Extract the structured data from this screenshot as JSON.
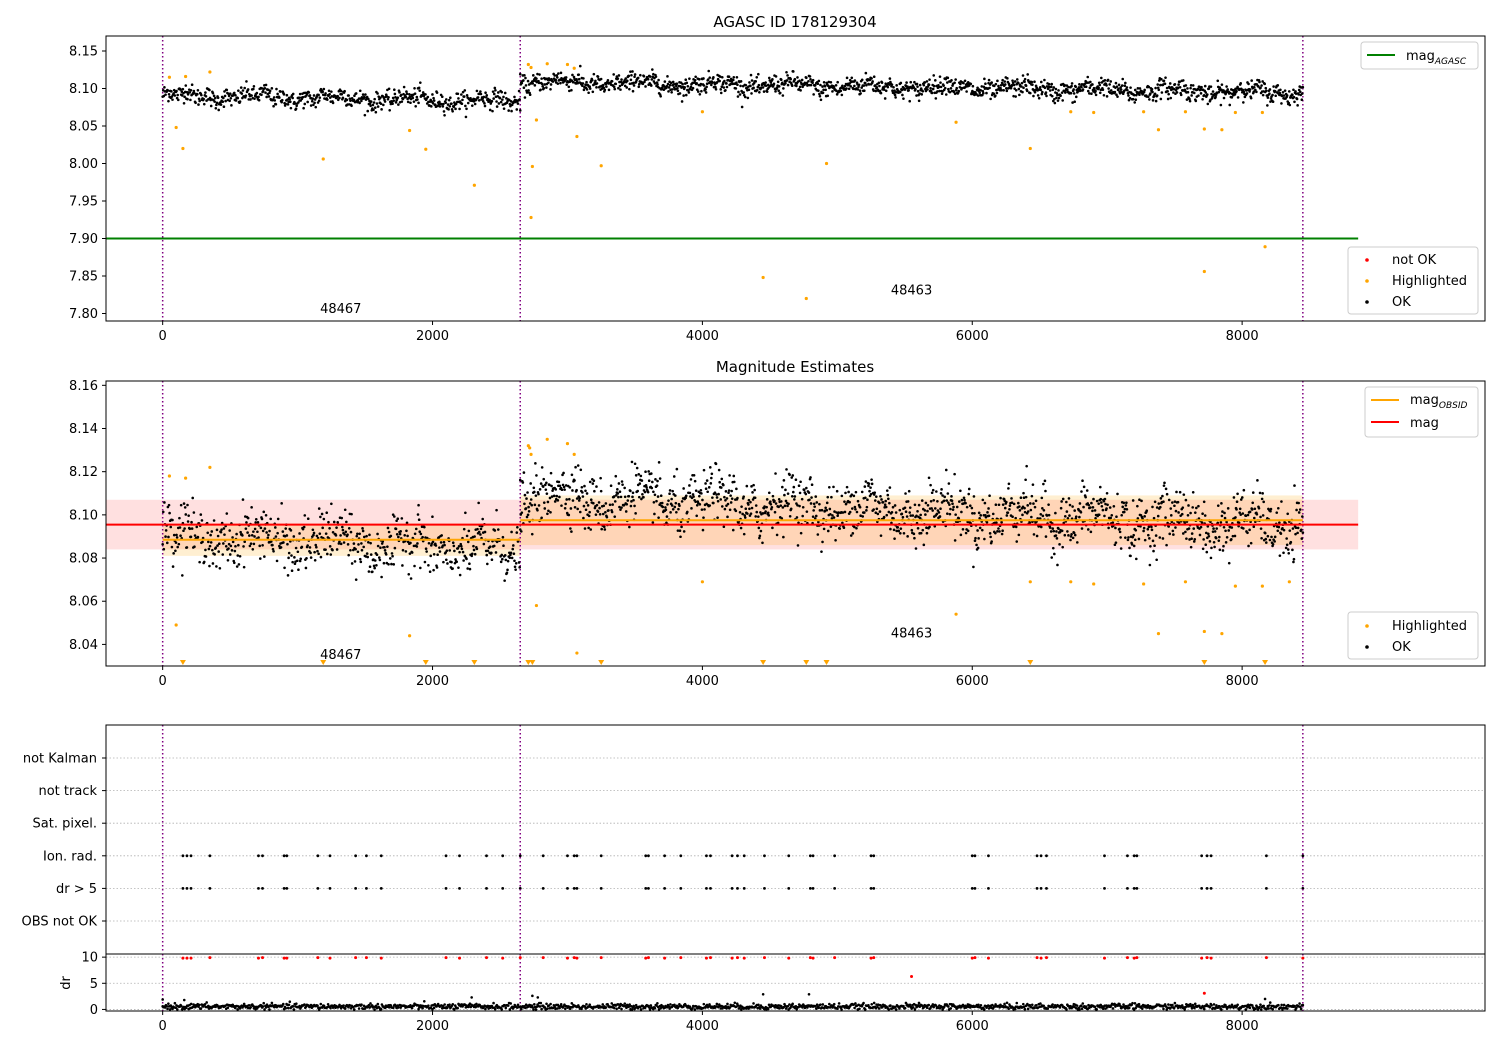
{
  "figure": {
    "background": "#ffffff"
  },
  "colors": {
    "ok": "#000000",
    "highlighted": "#ffa500",
    "not_ok": "#ff0000",
    "mag_agasc": "#008000",
    "mag": "#ff0000",
    "mag_obsid": "#ffa500",
    "obsid_boundary": "#800080",
    "grid": "#b0b0b0"
  },
  "chart_data": [
    {
      "id": "panel1",
      "type": "scatter",
      "title": "AGASC ID 178129304",
      "xlabel": "",
      "ylabel": "",
      "xlim": [
        -420,
        9800
      ],
      "ylim": [
        7.79,
        8.17
      ],
      "xticks": [
        0,
        2000,
        4000,
        6000,
        8000
      ],
      "xtick_labels": [
        "0",
        "2000",
        "4000",
        "6000",
        "8000"
      ],
      "yticks": [
        7.8,
        7.85,
        7.9,
        7.95,
        8.0,
        8.05,
        8.1,
        8.15
      ],
      "ytick_labels": [
        "7.80",
        "7.85",
        "7.90",
        "7.95",
        "8.00",
        "8.05",
        "8.10",
        "8.15"
      ],
      "obsid_boundaries": [
        0,
        2650,
        8450
      ],
      "obsid_labels": [
        {
          "text": "48467",
          "x": 1320,
          "y": 7.806
        },
        {
          "text": "48463",
          "x": 5550,
          "y": 7.831
        }
      ],
      "ok_segments": [
        {
          "x_start": 0,
          "x_end": 2650,
          "base": 8.091,
          "slope": -3e-06,
          "spread": 0.011,
          "n": 620
        },
        {
          "x_start": 2650,
          "x_end": 8450,
          "base": 8.109,
          "slope": -2.5e-06,
          "spread": 0.011,
          "n": 1500
        }
      ],
      "highlighted_points": [
        [
          50,
          8.115
        ],
        [
          100,
          8.048
        ],
        [
          150,
          8.02
        ],
        [
          170,
          8.116
        ],
        [
          350,
          8.122
        ],
        [
          1190,
          8.006
        ],
        [
          1830,
          8.044
        ],
        [
          1950,
          8.019
        ],
        [
          2310,
          7.971
        ],
        [
          2710,
          8.132
        ],
        [
          2730,
          8.128
        ],
        [
          2730,
          7.928
        ],
        [
          2740,
          7.996
        ],
        [
          2770,
          8.058
        ],
        [
          2850,
          8.133
        ],
        [
          3000,
          8.132
        ],
        [
          3050,
          8.127
        ],
        [
          3070,
          8.036
        ],
        [
          3250,
          7.997
        ],
        [
          4000,
          8.069
        ],
        [
          4450,
          7.848
        ],
        [
          4770,
          7.82
        ],
        [
          4920,
          8.0
        ],
        [
          5880,
          8.055
        ],
        [
          6430,
          8.02
        ],
        [
          6730,
          8.069
        ],
        [
          6900,
          8.068
        ],
        [
          7270,
          8.069
        ],
        [
          7380,
          8.045
        ],
        [
          7580,
          8.069
        ],
        [
          7720,
          8.046
        ],
        [
          7850,
          8.045
        ],
        [
          7950,
          8.068
        ],
        [
          8150,
          8.068
        ],
        [
          8170,
          7.889
        ],
        [
          7720,
          7.856
        ]
      ],
      "lines": [
        {
          "name": "mag_AGASC",
          "value": 7.9,
          "x_range": [
            -420,
            8860
          ],
          "color": "#008000"
        }
      ],
      "legend_upper": [
        {
          "label": "mag",
          "subscript": "AGASC",
          "kind": "line",
          "color": "#008000"
        }
      ],
      "legend_lower": [
        {
          "label": "not OK",
          "kind": "marker",
          "color": "#ff0000"
        },
        {
          "label": "Highlighted",
          "kind": "marker",
          "color": "#ffa500"
        },
        {
          "label": "OK",
          "kind": "marker",
          "color": "#000000"
        }
      ],
      "legend_placement": [
        "top-right",
        "bottom-right"
      ],
      "grid": false
    },
    {
      "id": "panel2",
      "type": "scatter",
      "title": "Magnitude Estimates",
      "xlabel": "",
      "ylabel": "",
      "xlim": [
        -420,
        9800
      ],
      "ylim": [
        8.03,
        8.162
      ],
      "xticks": [
        0,
        2000,
        4000,
        6000,
        8000
      ],
      "xtick_labels": [
        "0",
        "2000",
        "4000",
        "6000",
        "8000"
      ],
      "yticks": [
        8.04,
        8.06,
        8.08,
        8.1,
        8.12,
        8.14,
        8.16
      ],
      "ytick_labels": [
        "8.04",
        "8.06",
        "8.08",
        "8.10",
        "8.12",
        "8.14",
        "8.16"
      ],
      "obsid_boundaries": [
        0,
        2650,
        8450
      ],
      "obsid_labels": [
        {
          "text": "48467",
          "x": 1320,
          "y": 8.035
        },
        {
          "text": "48463",
          "x": 5550,
          "y": 8.045
        }
      ],
      "ok_segments": [
        {
          "x_start": 0,
          "x_end": 2650,
          "base": 8.091,
          "slope": -3e-06,
          "spread": 0.011,
          "n": 620
        },
        {
          "x_start": 2650,
          "x_end": 8450,
          "base": 8.109,
          "slope": -2.5e-06,
          "spread": 0.011,
          "n": 1500
        }
      ],
      "highlighted_points": [
        [
          50,
          8.118
        ],
        [
          100,
          8.049
        ],
        [
          170,
          8.117
        ],
        [
          350,
          8.122
        ],
        [
          1830,
          8.044
        ],
        [
          2710,
          8.132
        ],
        [
          2720,
          8.131
        ],
        [
          2730,
          8.128
        ],
        [
          2770,
          8.058
        ],
        [
          2850,
          8.135
        ],
        [
          3000,
          8.133
        ],
        [
          3050,
          8.128
        ],
        [
          3070,
          8.036
        ],
        [
          4000,
          8.069
        ],
        [
          5880,
          8.054
        ],
        [
          6430,
          8.069
        ],
        [
          6730,
          8.069
        ],
        [
          6900,
          8.068
        ],
        [
          7270,
          8.068
        ],
        [
          7380,
          8.045
        ],
        [
          7580,
          8.069
        ],
        [
          7720,
          8.046
        ],
        [
          7850,
          8.045
        ],
        [
          7950,
          8.067
        ],
        [
          8150,
          8.067
        ],
        [
          8350,
          8.069
        ]
      ],
      "offscale_markers_x": [
        150,
        1190,
        1950,
        2310,
        2710,
        2740,
        3250,
        4450,
        4770,
        4920,
        6430,
        7720,
        8170
      ],
      "mag": {
        "value": 8.0955,
        "band": [
          8.084,
          8.107
        ],
        "x_range": [
          -420,
          8860
        ],
        "color": "#ff0000"
      },
      "mag_obsid": [
        {
          "x_range": [
            0,
            2650
          ],
          "value": 8.0885,
          "band": [
            8.081,
            8.096
          ]
        },
        {
          "x_range": [
            2650,
            8450
          ],
          "value": 8.0975,
          "band": [
            8.086,
            8.109
          ]
        }
      ],
      "legend_upper": [
        {
          "label": "mag",
          "subscript": "OBSID",
          "kind": "line",
          "color": "#ffa500"
        },
        {
          "label": "mag",
          "subscript": "",
          "kind": "line",
          "color": "#ff0000"
        }
      ],
      "legend_lower": [
        {
          "label": "Highlighted",
          "kind": "marker",
          "color": "#ffa500"
        },
        {
          "label": "OK",
          "kind": "marker",
          "color": "#000000"
        }
      ],
      "legend_placement": [
        "top-right",
        "bottom-right"
      ],
      "grid": false
    },
    {
      "id": "panel3",
      "type": "scatter",
      "title": "",
      "xlabel": "",
      "ylabel": "",
      "xlim": [
        -420,
        9800
      ],
      "flag_rows": [
        "not Kalman",
        "not track",
        "Sat. pixel.",
        "Ion. rad.",
        "dr > 5",
        "OBS not OK"
      ],
      "flag_events": {
        "Ion. rad.": [
          150,
          180,
          210,
          350,
          710,
          740,
          900,
          920,
          1150,
          1240,
          1430,
          1510,
          1620,
          2100,
          2200,
          2400,
          2520,
          2650,
          2820,
          3000,
          3050,
          3070,
          3250,
          3580,
          3600,
          3720,
          3840,
          4030,
          4060,
          4220,
          4260,
          4310,
          4460,
          4640,
          4800,
          4820,
          4980,
          5250,
          5270,
          6000,
          6020,
          6120,
          6480,
          6510,
          6550,
          6980,
          7150,
          7200,
          7220,
          7700,
          7740,
          7770,
          8180,
          8450
        ],
        "dr > 5": [
          150,
          180,
          210,
          350,
          710,
          740,
          900,
          920,
          1150,
          1240,
          1430,
          1510,
          1620,
          2100,
          2200,
          2400,
          2520,
          2650,
          2820,
          3000,
          3050,
          3070,
          3250,
          3580,
          3600,
          3720,
          3840,
          4030,
          4060,
          4220,
          4260,
          4310,
          4460,
          4640,
          4800,
          4820,
          4980,
          5250,
          5270,
          6000,
          6020,
          6120,
          6480,
          6510,
          6550,
          6980,
          7150,
          7200,
          7220,
          7700,
          7740,
          7770,
          8180,
          8450
        ]
      },
      "grid": true
    },
    {
      "id": "panel4",
      "type": "scatter",
      "title": "",
      "xlabel": "",
      "ylabel": "dr",
      "xlim": [
        -420,
        9800
      ],
      "ylim": [
        -0.3,
        10.6
      ],
      "xticks": [
        0,
        2000,
        4000,
        6000,
        8000
      ],
      "xtick_labels": [
        "0",
        "2000",
        "4000",
        "6000",
        "8000"
      ],
      "yticks": [
        0,
        5,
        10
      ],
      "ytick_labels": [
        "0",
        "5",
        "10"
      ],
      "ok_dr": {
        "x_start": 0,
        "x_end": 8450,
        "mean": 0.55,
        "spread": 0.28,
        "n": 1400
      },
      "ok_outliers": [
        [
          0,
          1.9
        ],
        [
          160,
          1.8
        ],
        [
          2290,
          2.3
        ],
        [
          2740,
          2.6
        ],
        [
          2780,
          2.3
        ],
        [
          4450,
          2.9
        ],
        [
          4790,
          2.9
        ],
        [
          8170,
          2.0
        ]
      ],
      "not_ok_points": [
        [
          150,
          9.8
        ],
        [
          180,
          9.8
        ],
        [
          210,
          9.8
        ],
        [
          350,
          9.9
        ],
        [
          710,
          9.8
        ],
        [
          740,
          9.9
        ],
        [
          900,
          9.8
        ],
        [
          920,
          9.8
        ],
        [
          1150,
          9.9
        ],
        [
          1240,
          9.8
        ],
        [
          1430,
          9.9
        ],
        [
          1510,
          9.9
        ],
        [
          1620,
          9.8
        ],
        [
          2100,
          9.9
        ],
        [
          2200,
          9.8
        ],
        [
          2400,
          9.9
        ],
        [
          2520,
          9.8
        ],
        [
          2650,
          9.9
        ],
        [
          2820,
          9.9
        ],
        [
          3000,
          9.8
        ],
        [
          3050,
          9.9
        ],
        [
          3070,
          9.8
        ],
        [
          3250,
          9.9
        ],
        [
          3580,
          9.8
        ],
        [
          3600,
          9.9
        ],
        [
          3720,
          9.8
        ],
        [
          3840,
          9.9
        ],
        [
          4030,
          9.8
        ],
        [
          4060,
          9.9
        ],
        [
          4220,
          9.8
        ],
        [
          4260,
          9.9
        ],
        [
          4310,
          9.8
        ],
        [
          4460,
          9.9
        ],
        [
          4640,
          9.8
        ],
        [
          4800,
          9.9
        ],
        [
          4820,
          9.8
        ],
        [
          4980,
          9.9
        ],
        [
          5250,
          9.8
        ],
        [
          5270,
          9.9
        ],
        [
          5550,
          6.3
        ],
        [
          6000,
          9.8
        ],
        [
          6020,
          9.9
        ],
        [
          6120,
          9.8
        ],
        [
          6480,
          9.9
        ],
        [
          6510,
          9.8
        ],
        [
          6550,
          9.9
        ],
        [
          6980,
          9.8
        ],
        [
          7150,
          9.9
        ],
        [
          7200,
          9.8
        ],
        [
          7220,
          9.9
        ],
        [
          7700,
          9.8
        ],
        [
          7720,
          3.1
        ],
        [
          7740,
          9.9
        ],
        [
          7770,
          9.8
        ],
        [
          8180,
          9.9
        ],
        [
          8450,
          9.8
        ]
      ],
      "grid": true
    }
  ]
}
